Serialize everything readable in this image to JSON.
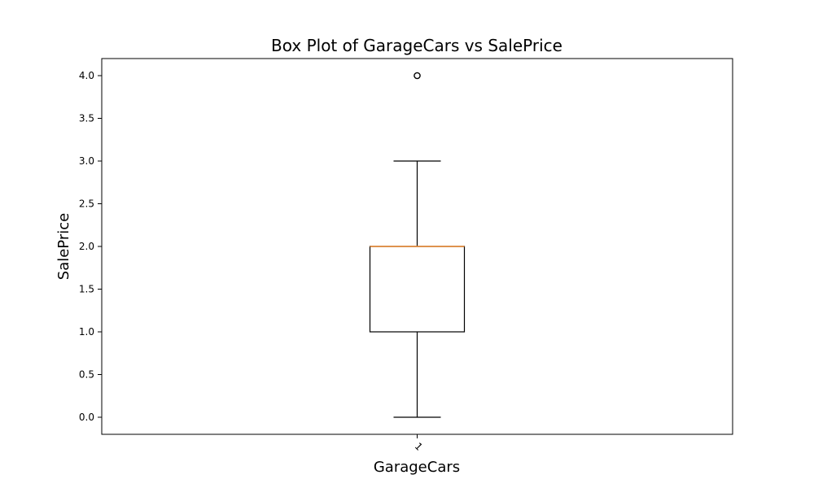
{
  "chart_data": {
    "type": "box",
    "title": "Box Plot of GarageCars vs SalePrice",
    "xlabel": "GarageCars",
    "ylabel": "SalePrice",
    "categories": [
      "1"
    ],
    "ylim": [
      -0.2,
      4.2
    ],
    "yticks": [
      "0.0",
      "0.5",
      "1.0",
      "1.5",
      "2.0",
      "2.5",
      "3.0",
      "3.5",
      "4.0"
    ],
    "boxes": [
      {
        "category": "1",
        "whisker_low": 0.0,
        "q1": 1.0,
        "median": 2.0,
        "q3": 2.0,
        "whisker_high": 3.0,
        "outliers": [
          4.0
        ]
      }
    ],
    "colors": {
      "box": "#000000",
      "median": "#e08a3c",
      "outlier": "#000000"
    },
    "grid": false
  }
}
